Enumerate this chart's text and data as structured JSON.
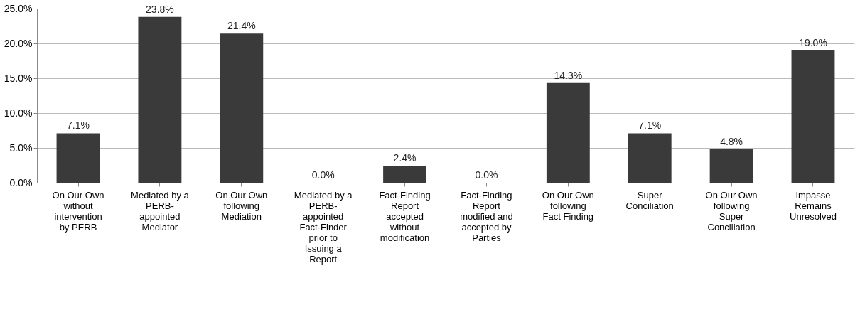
{
  "chart_data": {
    "type": "bar",
    "categories": [
      "On Our Own without intervention by PERB",
      "Mediated by a PERB-appointed Mediator",
      "On Our Own following Mediation",
      "Mediated by a PERB-appointed Fact-Finder prior to Issuing a Report",
      "Fact-Finding Report accepted without modification",
      "Fact-Finding Report modified and accepted by Parties",
      "On Our Own following Fact Finding",
      "Super Conciliation",
      "On Our Own following Super Conciliation",
      "Impasse Remains Unresolved"
    ],
    "values": [
      7.1,
      23.8,
      21.4,
      0.0,
      2.4,
      0.0,
      14.3,
      7.1,
      4.8,
      19.0
    ],
    "value_labels": [
      "7.1%",
      "23.8%",
      "21.4%",
      "0.0%",
      "2.4%",
      "0.0%",
      "14.3%",
      "7.1%",
      "4.8%",
      "19.0%"
    ],
    "color": "#3a3a3a",
    "ylim": [
      0,
      25
    ],
    "yticks": [
      {
        "value": 0,
        "label": "0.0%"
      },
      {
        "value": 5,
        "label": "5.0%"
      },
      {
        "value": 10,
        "label": "10.0%"
      },
      {
        "value": 15,
        "label": "15.0%"
      },
      {
        "value": 20,
        "label": "20.0%"
      },
      {
        "value": 25,
        "label": "25.0%"
      }
    ],
    "grid": "y"
  }
}
